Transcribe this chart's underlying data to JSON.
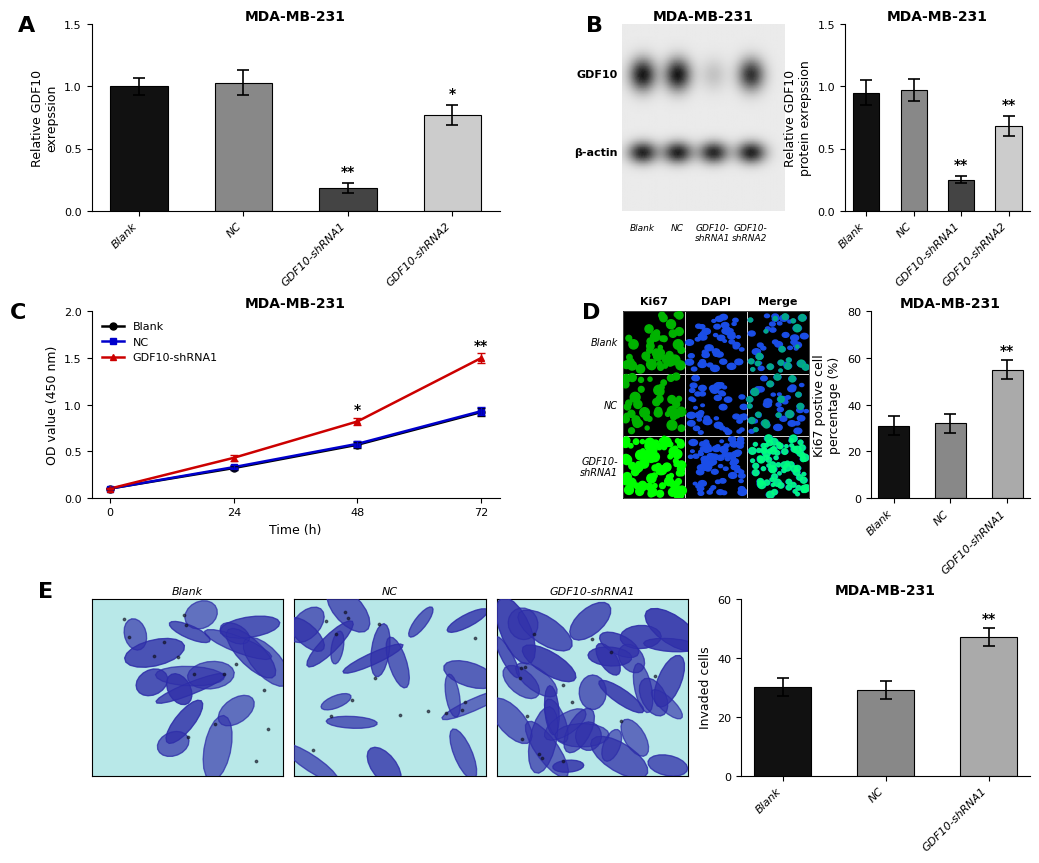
{
  "panel_A": {
    "title": "MDA-MB-231",
    "ylabel": "Relative GDF10\nexrepssion",
    "categories": [
      "Blank",
      "NC",
      "GDF10-shRNA1",
      "GDF10-shRNA2"
    ],
    "values": [
      1.0,
      1.03,
      0.18,
      0.77
    ],
    "errors": [
      0.07,
      0.1,
      0.04,
      0.08
    ],
    "colors": [
      "#111111",
      "#888888",
      "#444444",
      "#cccccc"
    ],
    "ylim": [
      0,
      1.5
    ],
    "yticks": [
      0.0,
      0.5,
      1.0,
      1.5
    ],
    "significance": [
      "",
      "",
      "**",
      "*"
    ]
  },
  "panel_B_bar": {
    "title": "MDA-MB-231",
    "ylabel": "Relative GDF10\nprotein exrepssion",
    "categories": [
      "Blank",
      "NC",
      "GDF10-shRNA1",
      "GDF10-shRNA2"
    ],
    "values": [
      0.95,
      0.97,
      0.25,
      0.68
    ],
    "errors": [
      0.1,
      0.09,
      0.03,
      0.08
    ],
    "colors": [
      "#111111",
      "#888888",
      "#444444",
      "#cccccc"
    ],
    "ylim": [
      0,
      1.5
    ],
    "yticks": [
      0.0,
      0.5,
      1.0,
      1.5
    ],
    "significance": [
      "",
      "",
      "**",
      "**"
    ]
  },
  "panel_B_wb": {
    "title": "MDA-MB-231",
    "labels": [
      "Blank",
      "NC",
      "GDF10-\nshRNA1",
      "GDF10-\nshRNA2"
    ],
    "gdf10_intensities": [
      0.85,
      0.85,
      0.18,
      0.75
    ],
    "bactin_intensities": [
      0.82,
      0.82,
      0.8,
      0.82
    ],
    "row_labels": [
      "GDF10",
      "β-actin"
    ]
  },
  "panel_C": {
    "title": "MDA-MB-231",
    "xlabel": "Time (h)",
    "ylabel": "OD value (450 nm)",
    "time_points": [
      0,
      24,
      48,
      72
    ],
    "blank_values": [
      0.1,
      0.32,
      0.57,
      0.92
    ],
    "nc_values": [
      0.1,
      0.33,
      0.58,
      0.93
    ],
    "shRNA1_values": [
      0.1,
      0.43,
      0.82,
      1.5
    ],
    "blank_errors": [
      0.01,
      0.02,
      0.03,
      0.04
    ],
    "nc_errors": [
      0.01,
      0.02,
      0.03,
      0.04
    ],
    "shRNA1_errors": [
      0.01,
      0.03,
      0.04,
      0.05
    ],
    "blank_color": "#000000",
    "nc_color": "#0000cc",
    "shRNA1_color": "#cc0000",
    "ylim": [
      0,
      2.0
    ],
    "yticks": [
      0.0,
      0.5,
      1.0,
      1.5,
      2.0
    ],
    "significance_48": "*",
    "significance_72": "**"
  },
  "panel_D_bar": {
    "title": "MDA-MB-231",
    "ylabel": "Ki67 postive cell\npercentage (%)",
    "categories": [
      "Blank",
      "NC",
      "GDF10-shRNA1"
    ],
    "values": [
      31,
      32,
      55
    ],
    "errors": [
      4,
      4,
      4
    ],
    "colors": [
      "#111111",
      "#888888",
      "#aaaaaa"
    ],
    "ylim": [
      0,
      80
    ],
    "yticks": [
      0,
      20,
      40,
      60,
      80
    ],
    "significance": [
      "",
      "",
      "**"
    ]
  },
  "panel_E_bar": {
    "title": "MDA-MB-231",
    "ylabel": "Invaded cells",
    "categories": [
      "Blank",
      "NC",
      "GDF10-shRNA1"
    ],
    "values": [
      30,
      29,
      47
    ],
    "errors": [
      3,
      3,
      3
    ],
    "colors": [
      "#111111",
      "#888888",
      "#aaaaaa"
    ],
    "ylim": [
      0,
      60
    ],
    "yticks": [
      0,
      20,
      40,
      60
    ],
    "significance": [
      "",
      "",
      "**"
    ]
  },
  "background_color": "#ffffff",
  "panel_label_fontsize": 16,
  "title_fontsize": 10,
  "axis_label_fontsize": 9,
  "tick_fontsize": 8,
  "bar_width": 0.55
}
